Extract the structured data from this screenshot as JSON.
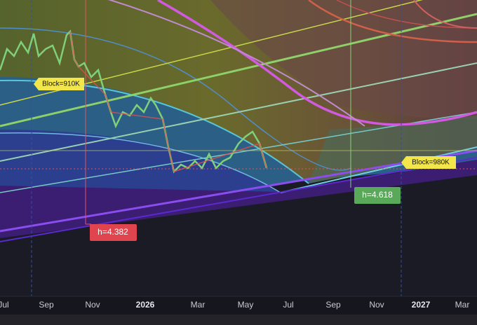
{
  "x_axis": {
    "labels": [
      "Jul",
      "Sep",
      "Nov",
      "2026",
      "Mar",
      "May",
      "Jul",
      "Sep",
      "Nov",
      "2027",
      "Mar"
    ]
  },
  "annotations": {
    "block_910k": "Block=910K",
    "block_980k": "Block=980K",
    "h_4382": "h=4.382",
    "h_4618": "h=4.618"
  }
}
